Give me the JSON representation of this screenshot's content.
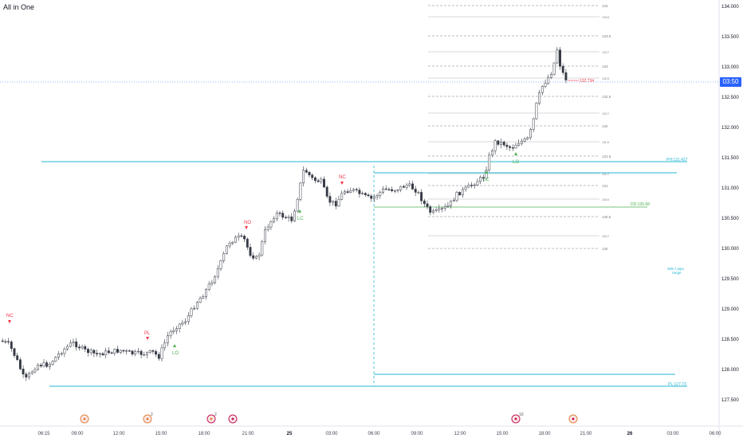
{
  "header": {
    "title": "All in One"
  },
  "price_axis": {
    "labels": [
      "134.000",
      "133.500",
      "133.000",
      "132.500",
      "132.000",
      "131.500",
      "131.000",
      "130.500",
      "130.000",
      "129.500",
      "129.000",
      "128.500",
      "128.000",
      "127.500"
    ],
    "current_tag": "03:50"
  },
  "time_axis": {
    "labels": [
      "06:15",
      "09:00",
      "12:00",
      "15:00",
      "18:00",
      "21:00",
      "25",
      "03:00",
      "06:00",
      "09:00",
      "12:00",
      "15:00",
      "18:00",
      "21:00",
      "26",
      "03:00",
      "06:00"
    ]
  },
  "signals": {
    "nc1": "NC",
    "pl1": "PL",
    "lo1": "LO",
    "no1": "NO",
    "lc1": "LC",
    "nc2": "NC",
    "lc2": "LC",
    "lo2": "LO"
  },
  "level_labels": {
    "ph": "PH:131.427",
    "pl": "PL:127.73",
    "dd": "DD:130.68",
    "range_1": "309.7 pips",
    "range_2": "range",
    "last": "132.734"
  },
  "fib_labels": {
    "l134": "134",
    "l1338": "133.8",
    "l1335": "133.5",
    "l1332": "133.2",
    "l133": "133",
    "l1328": "132.8",
    "l1325": "132.5",
    "l1322": "132.2",
    "l132": "132",
    "l1318": "131.8",
    "l1315": "131.5",
    "l1312": "131.2",
    "l131": "131",
    "l1308": "130.8",
    "l1305": "130.5",
    "l1302": "130.2",
    "l130": "130"
  },
  "events": {
    "e2_count": "2",
    "e5_count": "10"
  },
  "colors": {
    "up": "#ffffff",
    "down": "#363a45",
    "wick": "#363a45",
    "cyan": "#22b8d1",
    "green": "#4caf50",
    "red": "#f23645",
    "blue": "#2962ff"
  }
}
